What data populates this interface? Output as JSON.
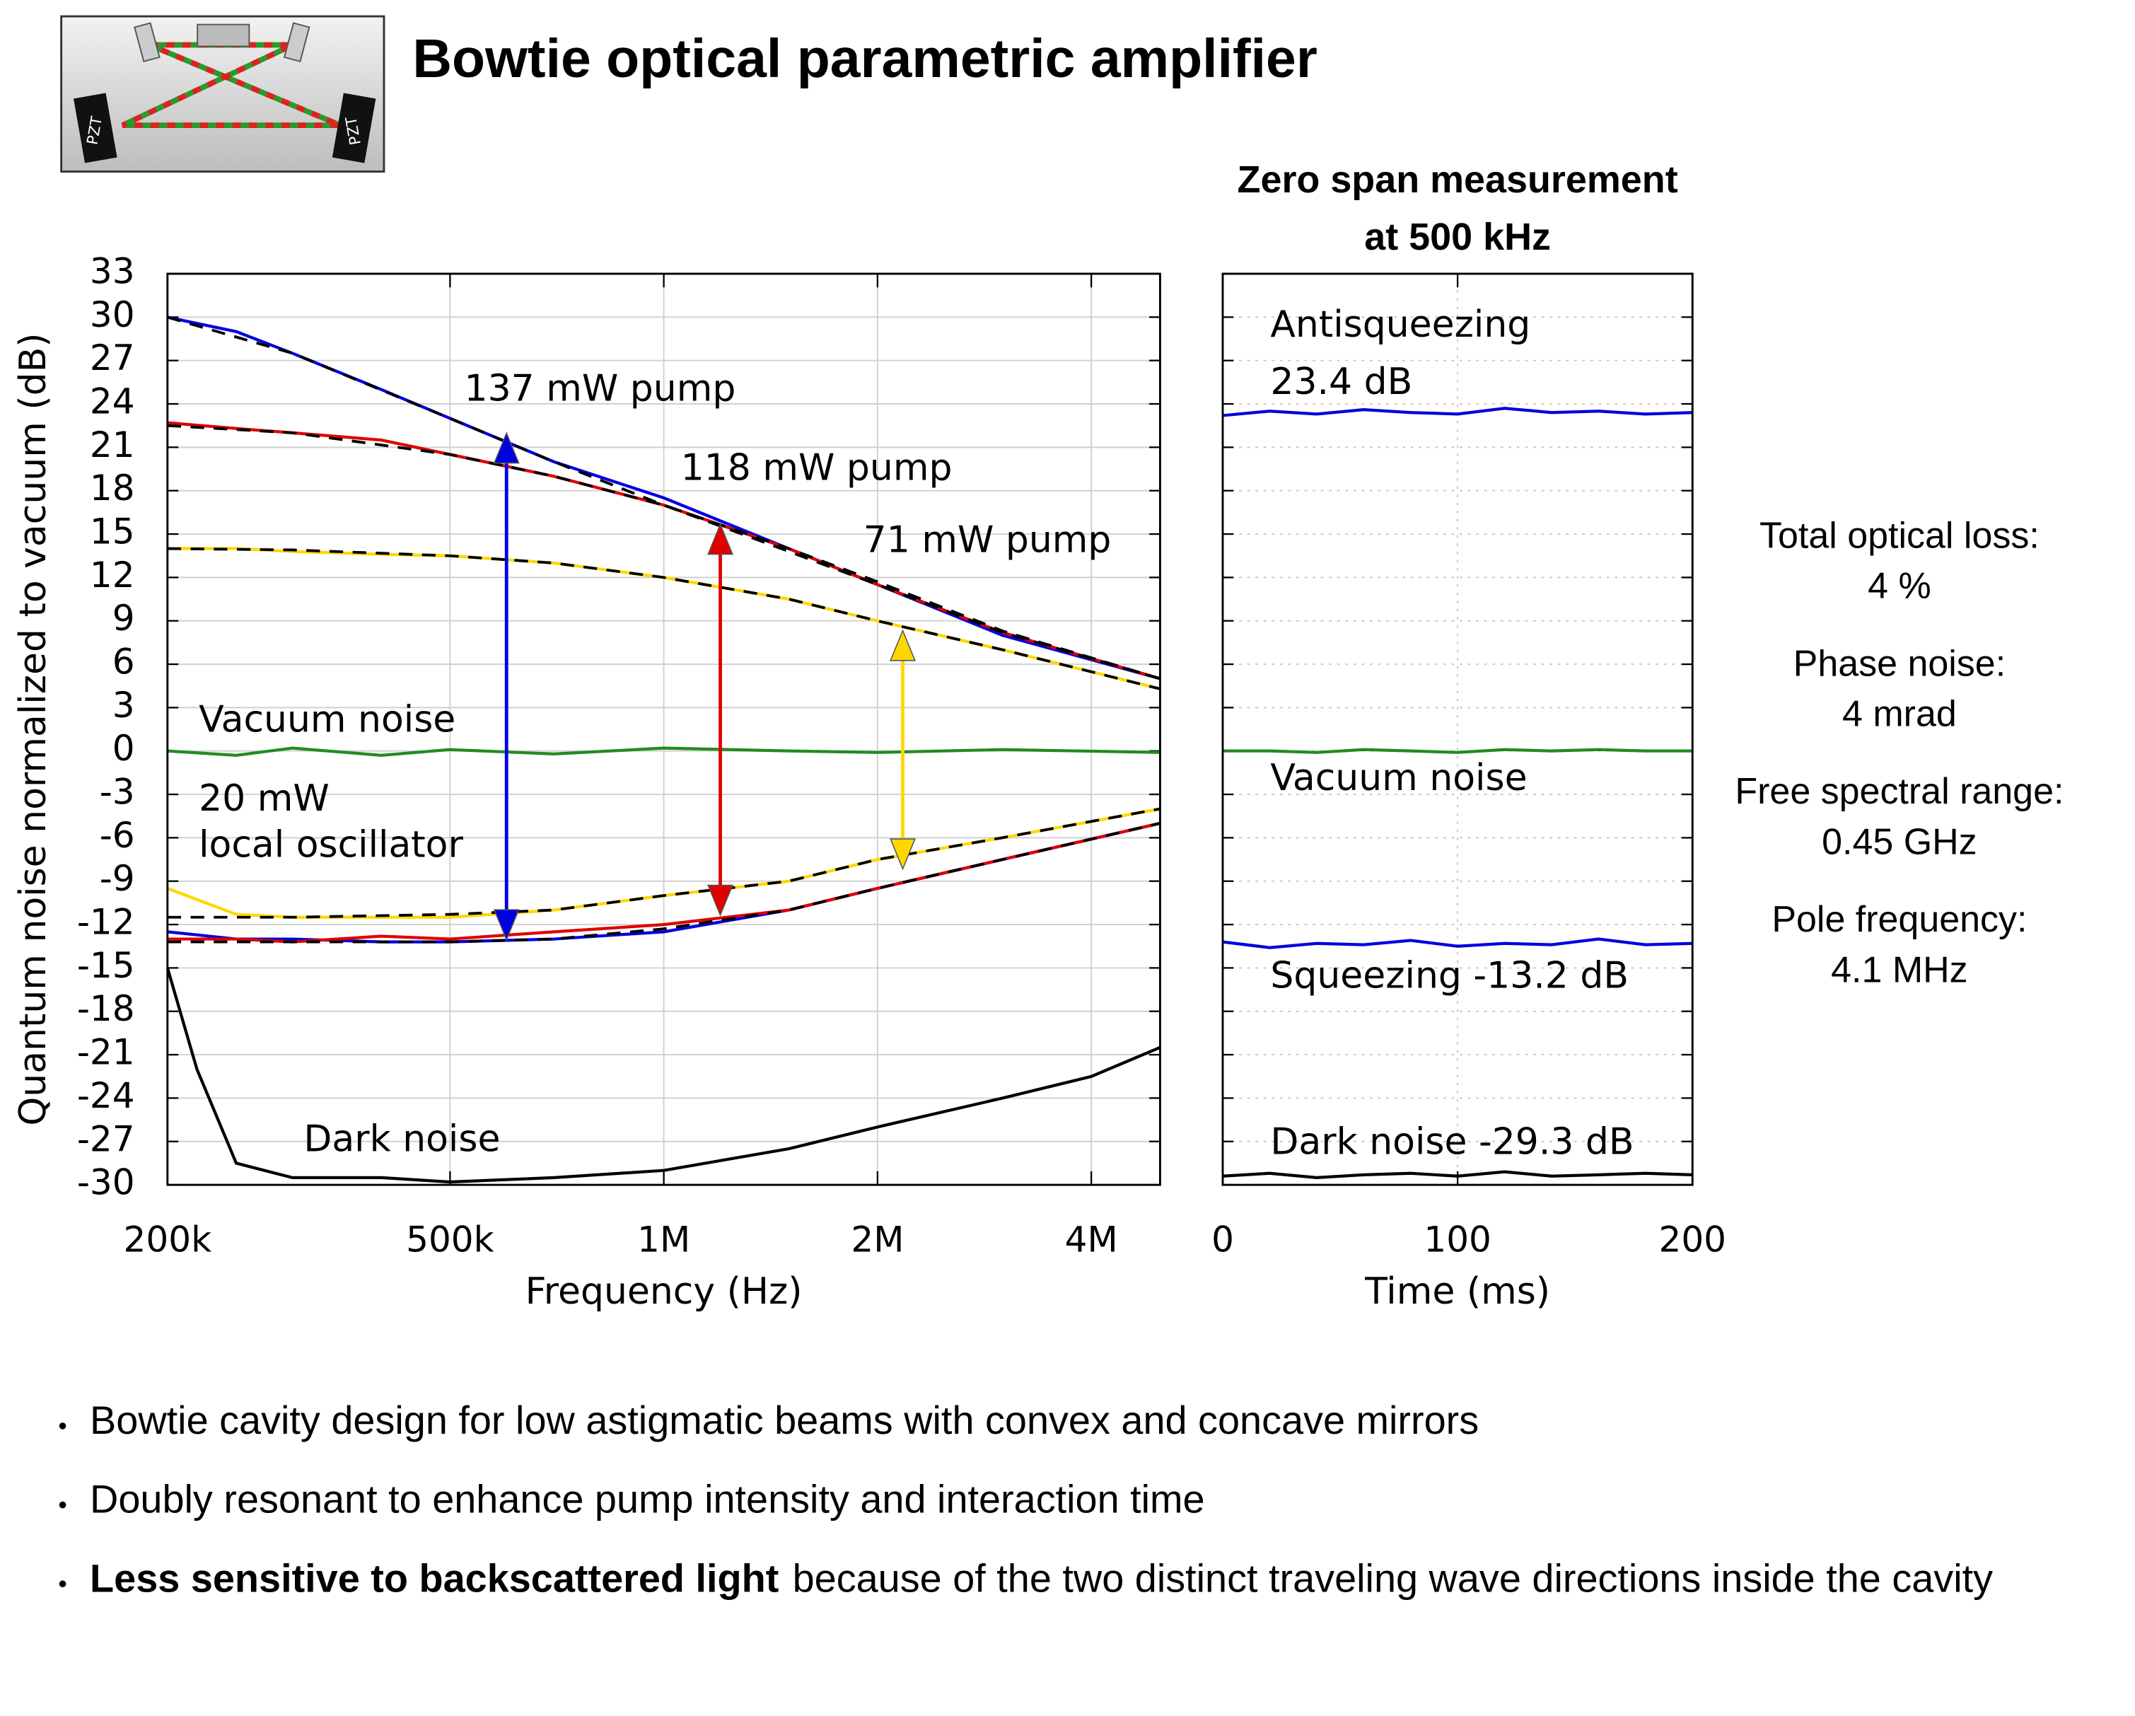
{
  "header": {
    "title": "Bowtie optical parametric amplifier",
    "icon_labels": [
      "PZT",
      "PZT"
    ]
  },
  "chart_data": [
    {
      "type": "line",
      "xlabel": "Frequency (Hz)",
      "ylabel": "Quantum noise normalized to vacuum (dB)",
      "xscale": "log",
      "grid": true,
      "xlim": [
        200000,
        5000000
      ],
      "xticks": [
        {
          "value": 200000,
          "label": "200k"
        },
        {
          "value": 500000,
          "label": "500k"
        },
        {
          "value": 1000000,
          "label": "1M"
        },
        {
          "value": 2000000,
          "label": "2M"
        },
        {
          "value": 4000000,
          "label": "4M"
        }
      ],
      "ylim": [
        -30,
        33
      ],
      "yticks": [
        33,
        30,
        27,
        24,
        21,
        18,
        15,
        12,
        9,
        6,
        3,
        0,
        -3,
        -6,
        -9,
        -12,
        -15,
        -18,
        -21,
        -24,
        -27,
        -30
      ],
      "annotations": [
        "137 mW pump",
        "118 mW pump",
        "71 mW pump",
        "Vacuum noise",
        "20 mW",
        "local oscillator",
        "Dark noise"
      ],
      "series": [
        {
          "color": "#0000e0",
          "x": [
            200000,
            250000,
            300000,
            400000,
            500000,
            700000,
            1000000,
            1500000,
            2000000,
            3000000,
            5000000
          ],
          "values": [
            30,
            29,
            27.5,
            25,
            23,
            20,
            17.5,
            14,
            11.5,
            8,
            5
          ]
        },
        {
          "color": "#e00000",
          "x": [
            200000,
            250000,
            300000,
            400000,
            500000,
            700000,
            1000000,
            1500000,
            2000000,
            3000000,
            5000000
          ],
          "values": [
            22.7,
            22.3,
            22,
            21.5,
            20.5,
            19,
            17,
            14,
            11.5,
            8.2,
            5
          ]
        },
        {
          "color": "#ffd700",
          "x": [
            200000,
            250000,
            300000,
            400000,
            500000,
            700000,
            1000000,
            1500000,
            2000000,
            3000000,
            5000000
          ],
          "values": [
            14,
            14,
            13.8,
            13.6,
            13.5,
            13,
            12,
            10.5,
            9,
            7,
            4.3
          ]
        },
        {
          "color": "#228b22",
          "x": [
            200000,
            250000,
            300000,
            400000,
            500000,
            700000,
            1000000,
            1500000,
            2000000,
            3000000,
            5000000
          ],
          "values": [
            0,
            -0.3,
            0.2,
            -0.3,
            0.1,
            -0.2,
            0.2,
            0,
            -0.1,
            0.1,
            -0.1
          ]
        },
        {
          "color": "#0000e0",
          "x": [
            200000,
            250000,
            300000,
            400000,
            500000,
            700000,
            1000000,
            1500000,
            2000000,
            3000000,
            5000000
          ],
          "values": [
            -12.5,
            -13,
            -13,
            -13.2,
            -13.2,
            -13,
            -12.5,
            -11,
            -9.5,
            -7.5,
            -5
          ]
        },
        {
          "color": "#e00000",
          "x": [
            200000,
            250000,
            300000,
            400000,
            500000,
            700000,
            1000000,
            1500000,
            2000000,
            3000000,
            5000000
          ],
          "values": [
            -13,
            -13,
            -13.2,
            -12.8,
            -13,
            -12.5,
            -12,
            -11,
            -9.5,
            -7.5,
            -5
          ]
        },
        {
          "color": "#ffd700",
          "x": [
            200000,
            250000,
            300000,
            400000,
            500000,
            700000,
            1000000,
            1500000,
            2000000,
            3000000,
            5000000
          ],
          "values": [
            -9.5,
            -11.3,
            -11.5,
            -11.5,
            -11.5,
            -11,
            -10,
            -9,
            -7.5,
            -6,
            -4
          ]
        },
        {
          "color": "#000000",
          "x": [
            200000,
            220000,
            250000,
            300000,
            400000,
            500000,
            700000,
            1000000,
            1500000,
            2000000,
            3000000,
            4000000,
            5000000
          ],
          "values": [
            -15,
            -22,
            -28.5,
            -29.5,
            -29.5,
            -29.8,
            -29.5,
            -29,
            -27.5,
            -26,
            -24,
            -22.5,
            -20.5
          ]
        },
        {
          "color": "#000000",
          "dash": true,
          "x": [
            200000,
            300000,
            500000,
            700000,
            1000000,
            1500000,
            2000000,
            3000000,
            5000000
          ],
          "values": [
            30,
            27.5,
            23,
            20,
            17,
            13.8,
            11.5,
            8.2,
            5
          ]
        },
        {
          "color": "#000000",
          "dash": true,
          "x": [
            200000,
            300000,
            500000,
            700000,
            1000000,
            1500000,
            2000000,
            3000000,
            5000000
          ],
          "values": [
            22.5,
            22,
            20.5,
            19,
            17,
            14,
            11.7,
            8.3,
            5
          ]
        },
        {
          "color": "#000000",
          "dash": true,
          "x": [
            200000,
            300000,
            500000,
            700000,
            1000000,
            1500000,
            2000000,
            3000000,
            5000000
          ],
          "values": [
            14,
            13.9,
            13.5,
            13,
            12,
            10.5,
            9,
            7,
            4.3
          ]
        },
        {
          "color": "#000000",
          "dash": true,
          "x": [
            200000,
            300000,
            500000,
            700000,
            1000000,
            1500000,
            2000000,
            3000000,
            5000000
          ],
          "values": [
            -11.5,
            -11.5,
            -11.3,
            -11,
            -10,
            -9,
            -7.5,
            -6,
            -4
          ]
        },
        {
          "color": "#000000",
          "dash": true,
          "x": [
            200000,
            300000,
            500000,
            700000,
            1000000,
            1500000,
            2000000,
            3000000,
            5000000
          ],
          "values": [
            -13.2,
            -13.2,
            -13.2,
            -13,
            -12.3,
            -11,
            -9.5,
            -7.5,
            -5
          ]
        }
      ]
    },
    {
      "type": "line",
      "title": "Zero span measurement",
      "subtitle": "at 500 kHz",
      "xlabel": "Time (ms)",
      "grid": true,
      "xlim": [
        0,
        200
      ],
      "xticks": [
        0,
        100,
        200
      ],
      "ylim": [
        -30,
        33
      ],
      "yticks": [
        33,
        30,
        27,
        24,
        21,
        18,
        15,
        12,
        9,
        6,
        3,
        0,
        -3,
        -6,
        -9,
        -12,
        -15,
        -18,
        -21,
        -24,
        -27,
        -30
      ],
      "annotations": [
        "Antisqueezing",
        "23.4 dB",
        "Vacuum noise",
        "Squeezing -13.2 dB",
        "Dark noise -29.3 dB"
      ],
      "series": [
        {
          "color": "#0000e0",
          "x": [
            0,
            20,
            40,
            60,
            80,
            100,
            120,
            140,
            160,
            180,
            200
          ],
          "values": [
            23.2,
            23.5,
            23.3,
            23.6,
            23.4,
            23.3,
            23.7,
            23.4,
            23.5,
            23.3,
            23.4
          ]
        },
        {
          "color": "#228b22",
          "x": [
            0,
            20,
            40,
            60,
            80,
            100,
            120,
            140,
            160,
            180,
            200
          ],
          "values": [
            0,
            0,
            -0.1,
            0.1,
            0,
            -0.1,
            0.1,
            0,
            0.1,
            0,
            0
          ]
        },
        {
          "color": "#0000e0",
          "x": [
            0,
            20,
            40,
            60,
            80,
            100,
            120,
            140,
            160,
            180,
            200
          ],
          "values": [
            -13.2,
            -13.6,
            -13.3,
            -13.4,
            -13.1,
            -13.5,
            -13.3,
            -13.4,
            -13,
            -13.4,
            -13.3
          ]
        },
        {
          "color": "#000000",
          "x": [
            0,
            20,
            40,
            60,
            80,
            100,
            120,
            140,
            160,
            180,
            200
          ],
          "values": [
            -29.4,
            -29.2,
            -29.5,
            -29.3,
            -29.2,
            -29.4,
            -29.1,
            -29.4,
            -29.3,
            -29.2,
            -29.3
          ]
        }
      ]
    }
  ],
  "parameters": [
    {
      "label": "Total optical loss:",
      "value": "4 %"
    },
    {
      "label": "Phase noise:",
      "value": "4 mrad"
    },
    {
      "label": "Free spectral range:",
      "value": "0.45 GHz"
    },
    {
      "label": "Pole frequency:",
      "value": "4.1 MHz"
    }
  ],
  "bullets": [
    {
      "text": "Bowtie cavity design for low astigmatic beams with convex and concave mirrors"
    },
    {
      "text": "Doubly resonant to enhance pump intensity and interaction time"
    },
    {
      "bold": "Less sensitive to backscattered light",
      "text": "because of the two distinct traveling wave directions inside the cavity"
    }
  ]
}
